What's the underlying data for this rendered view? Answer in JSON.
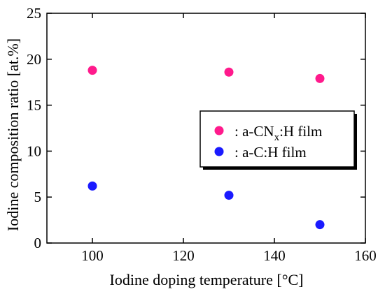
{
  "chart_data": {
    "type": "scatter",
    "xlabel": "Iodine doping temperature [°C]",
    "ylabel": "Iodine composition ratio [at.%]",
    "xlim": [
      90,
      160
    ],
    "ylim": [
      0,
      25
    ],
    "xticks": [
      100,
      120,
      140,
      160
    ],
    "yticks": [
      0,
      5,
      10,
      15,
      20,
      25
    ],
    "grid": false,
    "legend_position": "right, middle",
    "series": [
      {
        "name": ": a-CNx:H film",
        "color": "#ff1a8c",
        "points": [
          {
            "x": 100,
            "y": 18.8
          },
          {
            "x": 130,
            "y": 18.6
          },
          {
            "x": 150,
            "y": 17.9
          }
        ]
      },
      {
        "name": ": a-C:H film",
        "color": "#1a1aff",
        "points": [
          {
            "x": 100,
            "y": 6.2
          },
          {
            "x": 130,
            "y": 5.2
          },
          {
            "x": 150,
            "y": 2.0
          }
        ]
      }
    ]
  },
  "legend": {
    "entries": [
      {
        "prefix": ": a-CN",
        "sub": "x",
        "suffix": ":H film"
      },
      {
        "prefix": ": a-C:H film",
        "sub": "",
        "suffix": ""
      }
    ]
  }
}
